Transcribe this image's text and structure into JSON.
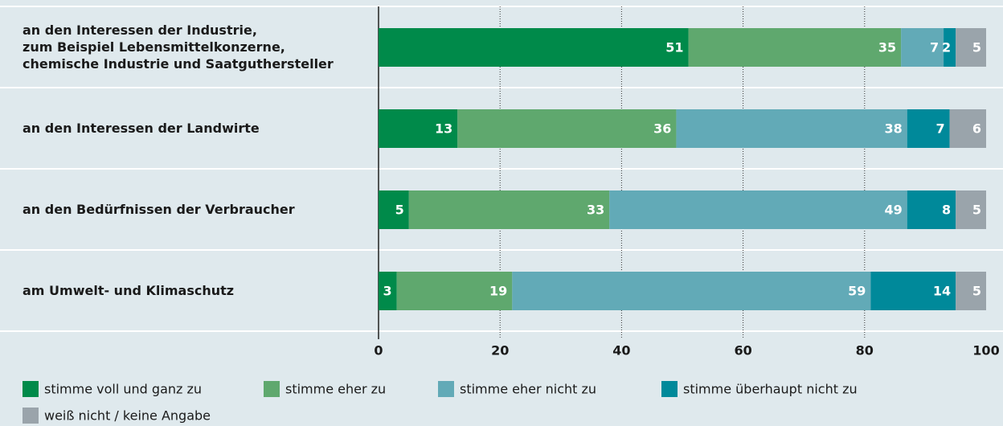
{
  "chart_data": {
    "type": "stacked-bar-horizontal",
    "categories": [
      [
        "an den Interessen der Industrie,",
        "zum Beispiel Lebensmittelkonzerne,",
        "chemische Industrie und Saatguthersteller"
      ],
      [
        "an den Interessen der Landwirte"
      ],
      [
        "an den Bedürfnissen der Verbraucher"
      ],
      [
        "am Umwelt- und Klimaschutz"
      ]
    ],
    "series": [
      {
        "name": "stimme voll und ganz zu",
        "color": "#008a4a",
        "values": [
          51,
          13,
          5,
          3
        ]
      },
      {
        "name": "stimme eher zu",
        "color": "#5fa86e",
        "values": [
          35,
          36,
          33,
          19
        ]
      },
      {
        "name": "stimme eher nicht zu",
        "color": "#62aab7",
        "values": [
          7,
          38,
          49,
          59
        ]
      },
      {
        "name": "stimme überhaupt nicht zu",
        "color": "#00899a",
        "values": [
          2,
          7,
          8,
          14
        ]
      },
      {
        "name": "weiß nicht / keine Angabe",
        "color": "#9aa4ab",
        "values": [
          5,
          6,
          5,
          5
        ]
      }
    ],
    "xlim": [
      0,
      100
    ],
    "xticks": [
      0,
      20,
      40,
      60,
      80,
      100
    ],
    "grid": true,
    "legend": "bottom"
  }
}
